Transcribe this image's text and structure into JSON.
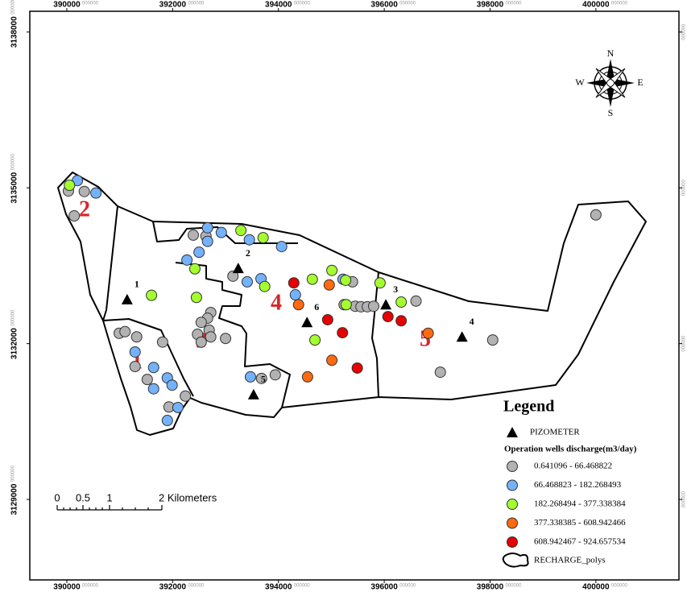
{
  "map": {
    "type": "scatter",
    "xlim": [
      389300,
      401570
    ],
    "ylim": [
      3127450,
      3138400
    ],
    "xticks": [
      {
        "value": 390000,
        "label": "390000",
        "fraction": "000000"
      },
      {
        "value": 392000,
        "label": "392000",
        "fraction": "000000"
      },
      {
        "value": 394000,
        "label": "394000",
        "fraction": "000000"
      },
      {
        "value": 396000,
        "label": "396000",
        "fraction": "000000"
      },
      {
        "value": 398000,
        "label": "398000",
        "fraction": "000000"
      },
      {
        "value": 400000,
        "label": "400000",
        "fraction": "000000"
      }
    ],
    "yticks": [
      {
        "value": 3129000,
        "label": "3129000",
        "fraction": "000000"
      },
      {
        "value": 3132000,
        "label": "3132000",
        "fraction": "000000"
      },
      {
        "value": 3135000,
        "label": "3135000",
        "fraction": "000000"
      },
      {
        "value": 3138000,
        "label": "3138000",
        "fraction": "000000"
      }
    ],
    "legend": {
      "title": "Legend",
      "subtitle": "Operation wells discharge(m3/day)",
      "polygons": "RECHARGE_polys"
    },
    "piezometers": {
      "name": "PIZOMETER",
      "color": "#000000",
      "x": [
        391140,
        393240,
        396030,
        397470,
        393530,
        394540
      ],
      "y": [
        3132850,
        3133450,
        3132750,
        3132130,
        3131020,
        3132410
      ],
      "labels": [
        "1",
        "2",
        "3",
        "4",
        "5",
        "6"
      ]
    },
    "series": [
      {
        "name": "0.641096 - 66.468822",
        "color": "#b2b2b2",
        "x": [
          390030,
          390330,
          390140,
          392390,
          392630,
          393140,
          392720,
          392660,
          392540,
          392690,
          392470,
          392720,
          392540,
          393000,
          390990,
          391100,
          391320,
          391290,
          391810,
          392240,
          391930,
          393940,
          393680,
          395400,
          395450,
          395560,
          395680,
          395800,
          395240,
          396600,
          398050,
          397060,
          400000,
          391520
        ],
        "y": [
          3134940,
          3134930,
          3134460,
          3134090,
          3134070,
          3133300,
          3132600,
          3132490,
          3132410,
          3132260,
          3132180,
          3132130,
          3132030,
          3132100,
          3132200,
          3132230,
          3132130,
          3131560,
          3132030,
          3130990,
          3130780,
          3131400,
          3131330,
          3133190,
          3132720,
          3132710,
          3132710,
          3132720,
          3132750,
          3132820,
          3132070,
          3131450,
          3134480,
          3131310
        ]
      },
      {
        "name": "66.468823 - 182.268493",
        "color": "#73b2ff",
        "x": [
          390200,
          390550,
          392660,
          392660,
          392920,
          393450,
          394060,
          392270,
          392500,
          393410,
          393670,
          393470,
          391640,
          391640,
          391900,
          391990,
          392100,
          391900,
          391290,
          394320,
          395220
        ],
        "y": [
          3135140,
          3134900,
          3134230,
          3133970,
          3134140,
          3134000,
          3133870,
          3133610,
          3133760,
          3133190,
          3133250,
          3131360,
          3131540,
          3131130,
          3131340,
          3131200,
          3130770,
          3130520,
          3131840,
          3132940,
          3133240
        ]
      },
      {
        "name": "182.268494 - 377.338384",
        "color": "#a3ff2e",
        "x": [
          390050,
          391600,
          392450,
          392420,
          393290,
          393710,
          393740,
          394640,
          395010,
          395270,
          395920,
          396320,
          394690,
          395280
        ],
        "y": [
          3135050,
          3132930,
          3132890,
          3133440,
          3134180,
          3134040,
          3133100,
          3133240,
          3133410,
          3133220,
          3133170,
          3132800,
          3132070,
          3132750
        ]
      },
      {
        "name": "377.338385 - 608.942466",
        "color": "#ff6a10",
        "x": [
          394960,
          394380,
          395010,
          394550,
          396830
        ],
        "y": [
          3133130,
          3132750,
          3131680,
          3131360,
          3132200
        ]
      },
      {
        "name": "608.942467 - 924.657534",
        "color": "#e60000",
        "x": [
          394290,
          394930,
          395210,
          396070,
          396320,
          395490
        ],
        "y": [
          3133170,
          3132460,
          3132210,
          3132520,
          3132440,
          3131530
        ]
      }
    ],
    "zones": [
      "1",
      "2",
      "3",
      "4",
      "5"
    ],
    "north": {
      "n": "N",
      "s": "S",
      "e": "E",
      "w": "W"
    },
    "scale_bar": [
      "0",
      "0.5",
      "1",
      "2 Kilometers"
    ]
  }
}
